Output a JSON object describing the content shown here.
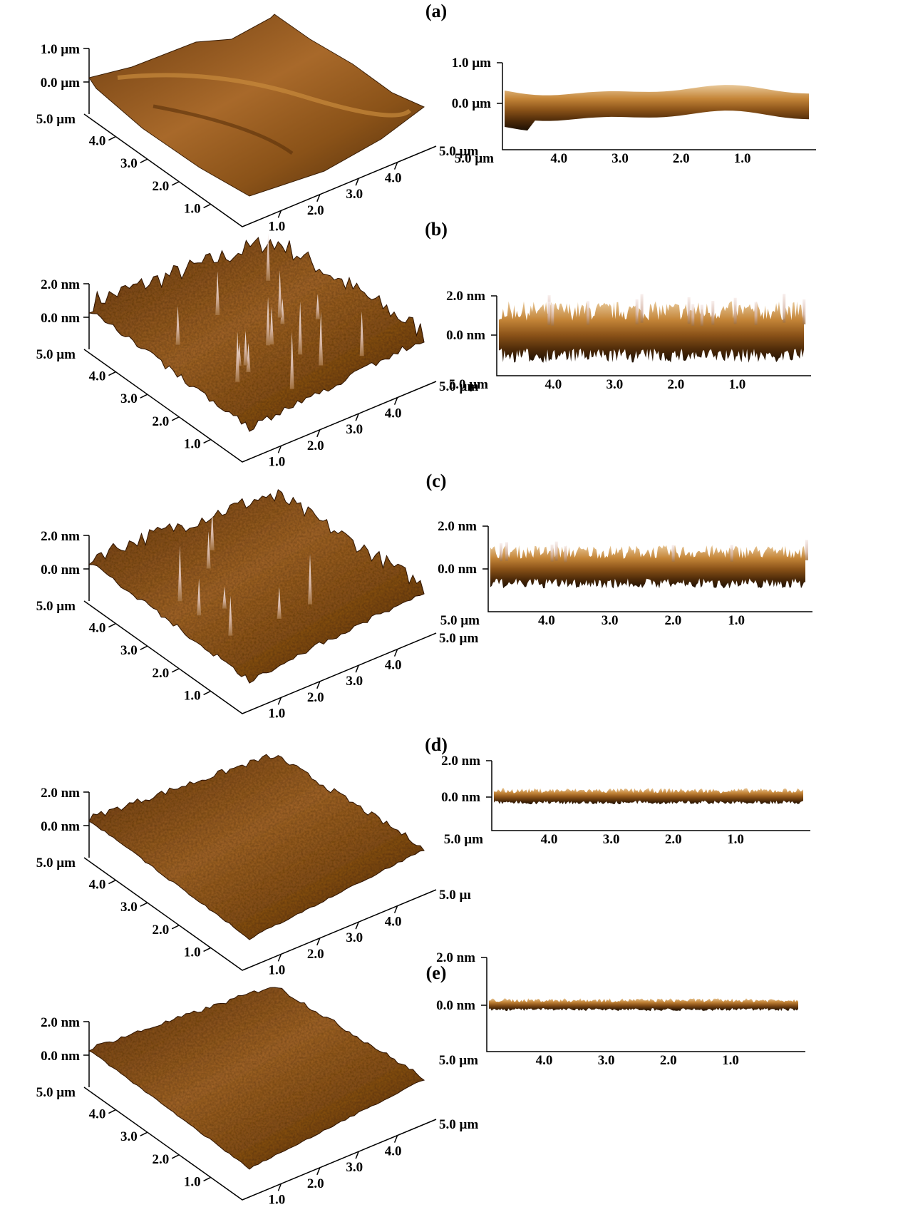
{
  "panels": [
    {
      "label": "(a)",
      "z_unit": "µm",
      "z_top": "1.0 µm",
      "z_zero": "0.0 µm",
      "y_end": "5.0 µm",
      "x_end": "5.0 µm",
      "left_ticks": [
        "4.0",
        "3.0",
        "2.0",
        "1.0"
      ],
      "right_ticks": [
        "1.0",
        "2.0",
        "3.0",
        "4.0"
      ],
      "profile": {
        "z_top": "1.0 µm",
        "z_zero": "0.0 µm",
        "x_end": "5.0 µm",
        "ticks": [
          "4.0",
          "3.0",
          "2.0",
          "1.0"
        ]
      },
      "roughness": "smooth-large",
      "peaks": "none"
    },
    {
      "label": "(b)",
      "z_unit": "nm",
      "z_top": "2.0 nm",
      "z_zero": "0.0 nm",
      "y_end": "5.0 µm",
      "x_end": "5.0 µm",
      "left_ticks": [
        "4.0",
        "3.0",
        "2.0",
        "1.0"
      ],
      "right_ticks": [
        "1.0",
        "2.0",
        "3.0",
        "4.0"
      ],
      "profile": {
        "z_top": "2.0 nm",
        "z_zero": "0.0 nm",
        "x_end": "5.0 µm",
        "ticks": [
          "4.0",
          "3.0",
          "2.0",
          "1.0"
        ]
      },
      "roughness": "very-high",
      "peaks": "many-white"
    },
    {
      "label": "(c)",
      "z_unit": "nm",
      "z_top": "2.0 nm",
      "z_zero": "0.0 nm",
      "y_end": "5.0 µm",
      "x_end": "5.0 µm",
      "left_ticks": [
        "4.0",
        "3.0",
        "2.0",
        "1.0"
      ],
      "right_ticks": [
        "1.0",
        "2.0",
        "3.0",
        "4.0"
      ],
      "profile": {
        "z_top": "2.0 nm",
        "z_zero": "0.0 nm",
        "x_end": "5.0 µm",
        "ticks": [
          "4.0",
          "3.0",
          "2.0",
          "1.0"
        ]
      },
      "roughness": "high",
      "peaks": "some-white"
    },
    {
      "label": "(d)",
      "z_unit": "nm",
      "z_top": "2.0 nm",
      "z_zero": "0.0 nm",
      "y_end": "5.0 µm",
      "x_end": "5.0 µı",
      "left_ticks": [
        "4.0",
        "3.0",
        "2.0",
        "1.0"
      ],
      "right_ticks": [
        "1.0",
        "2.0",
        "3.0",
        "4.0"
      ],
      "profile": {
        "z_top": "2.0 nm",
        "z_zero": "0.0 nm",
        "x_end": "5.0 µm",
        "ticks": [
          "4.0",
          "3.0",
          "2.0",
          "1.0"
        ]
      },
      "roughness": "low",
      "peaks": "none"
    },
    {
      "label": "(e)",
      "z_unit": "nm",
      "z_top": "2.0 nm",
      "z_zero": "0.0 nm",
      "y_end": "5.0 µm",
      "x_end": "5.0 µm",
      "left_ticks": [
        "4.0",
        "3.0",
        "2.0",
        "1.0"
      ],
      "right_ticks": [
        "1.0",
        "2.0",
        "3.0",
        "4.0"
      ],
      "profile": {
        "z_top": "2.0 nm",
        "z_zero": "0.0 nm",
        "x_end": "5.0 µm",
        "ticks": [
          "4.0",
          "3.0",
          "2.0",
          "1.0"
        ]
      },
      "roughness": "very-low",
      "peaks": "none"
    }
  ],
  "colors": {
    "surface_dark": "#3a1e06",
    "surface_mid": "#8a5218",
    "surface_light": "#c88a3c",
    "peak_white": "#f3e8e4"
  }
}
